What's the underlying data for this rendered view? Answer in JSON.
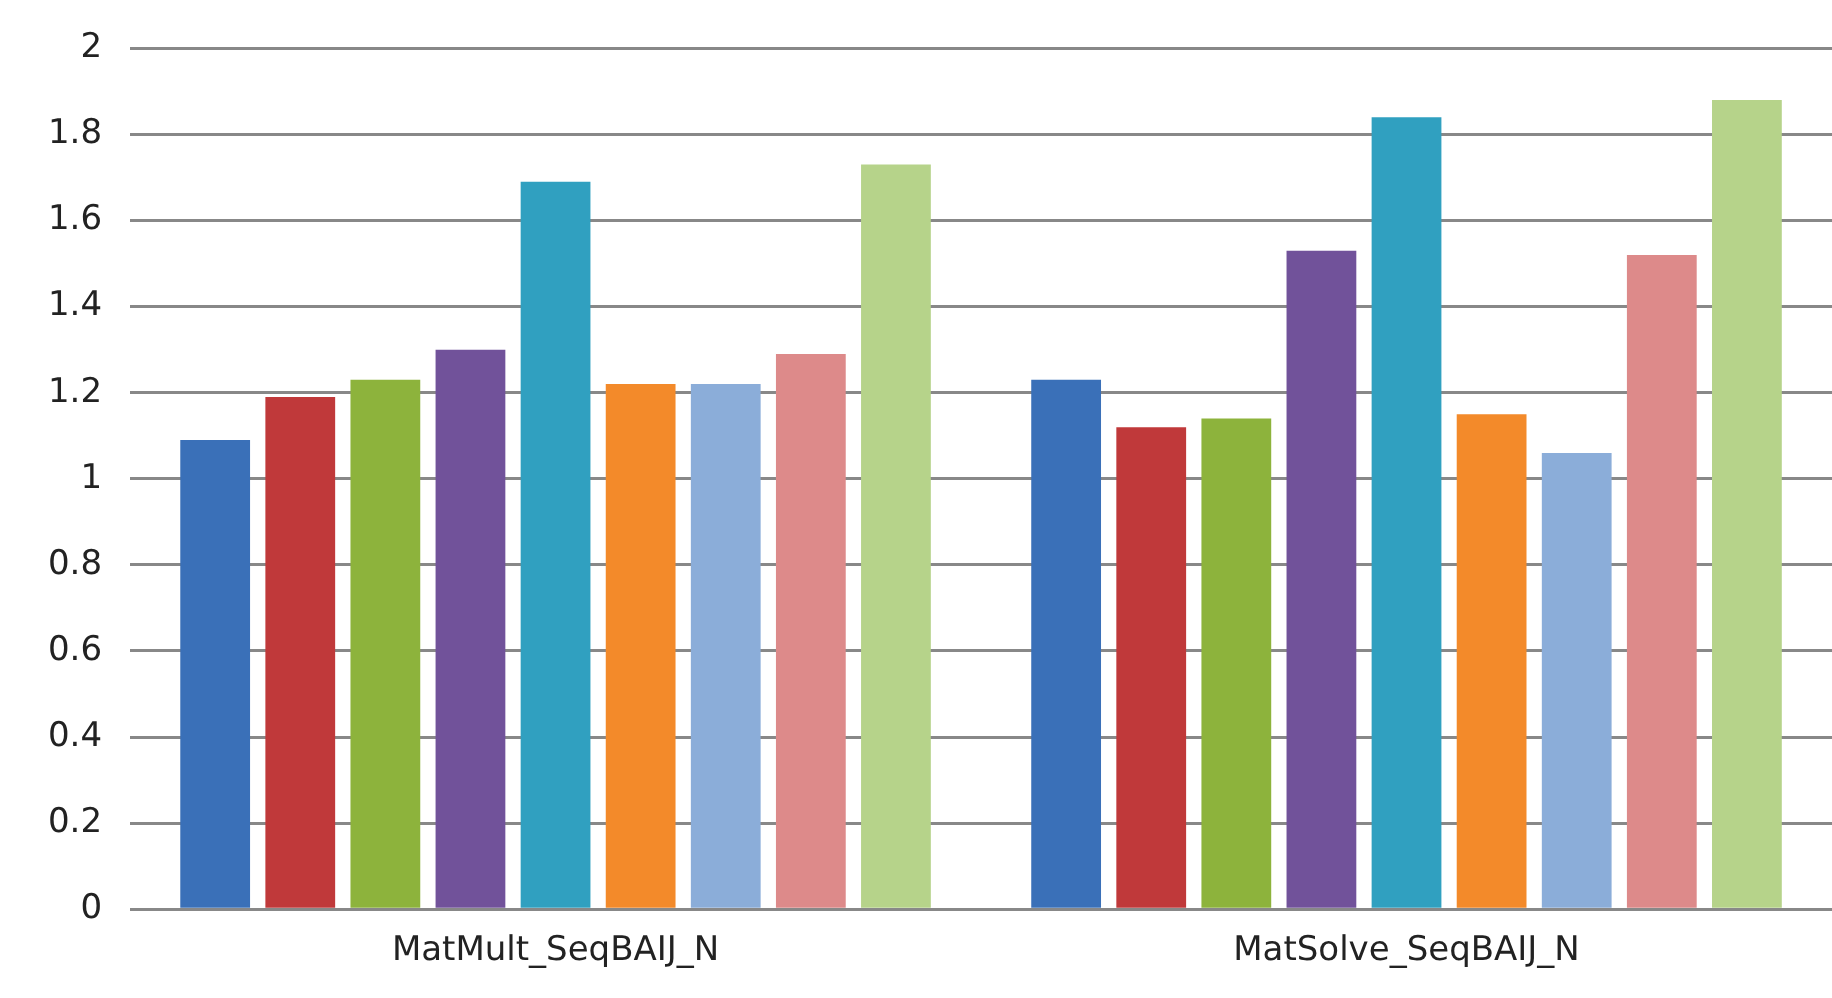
{
  "chart_data": {
    "type": "bar",
    "categories": [
      "MatMult_SeqBAIJ_N",
      "MatSolve_SeqBAIJ_N"
    ],
    "series": [
      {
        "color": "#3a70b8",
        "values": [
          1.09,
          1.23
        ]
      },
      {
        "color": "#c0393a",
        "values": [
          1.19,
          1.12
        ]
      },
      {
        "color": "#8db33c",
        "values": [
          1.23,
          1.14
        ]
      },
      {
        "color": "#71529a",
        "values": [
          1.3,
          1.53
        ]
      },
      {
        "color": "#30a0c0",
        "values": [
          1.69,
          1.84
        ]
      },
      {
        "color": "#f38a2a",
        "values": [
          1.22,
          1.15
        ]
      },
      {
        "color": "#8badd9",
        "values": [
          1.22,
          1.06
        ]
      },
      {
        "color": "#dd8a8a",
        "values": [
          1.29,
          1.52
        ]
      },
      {
        "color": "#b6d38a",
        "values": [
          1.73,
          1.88
        ]
      }
    ],
    "ylim": [
      0,
      2
    ],
    "yticks": [
      0,
      0.2,
      0.4,
      0.6,
      0.8,
      1,
      1.2,
      1.4,
      1.6,
      1.8,
      2
    ],
    "grid": "y",
    "legend": false
  }
}
